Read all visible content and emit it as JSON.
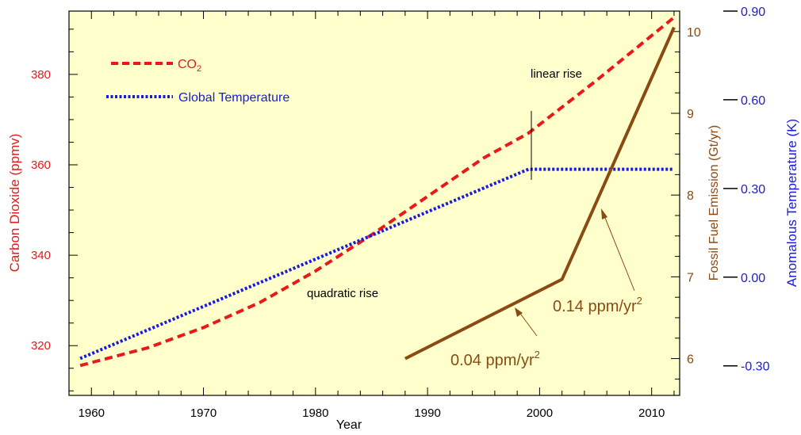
{
  "chart_data": {
    "type": "line",
    "xlabel": "Year",
    "xlim": [
      1958,
      2012.5
    ],
    "xticks": [
      1960,
      1970,
      1980,
      1990,
      2000,
      2010
    ],
    "axes": {
      "co2": {
        "label": "Carbon Dioxide (ppmv)",
        "ylim": [
          309,
          394
        ],
        "ticks": [
          320,
          340,
          360,
          380
        ],
        "color": "#e8191b"
      },
      "fossil": {
        "label": "Fossil Fuel Emission (Gt/yr)",
        "ylim": [
          5.55,
          10.25
        ],
        "ticks": [
          6,
          7,
          8,
          9,
          10
        ],
        "color": "#8b4a12"
      },
      "temperature": {
        "label": "Anomalous Temperature (K)",
        "ylim": [
          -0.4,
          0.9
        ],
        "ticks": [
          -0.3,
          0.0,
          0.3,
          0.6,
          0.9
        ],
        "tick_labels": [
          "-0.30",
          "0.00",
          "0.30",
          "0.60",
          "0.90"
        ],
        "color": "#1a1adc"
      }
    },
    "series": [
      {
        "name": "CO2",
        "axis": "co2",
        "style": "dashed",
        "color": "#e8191b",
        "x": [
          1959,
          1965,
          1970,
          1975,
          1980,
          1985,
          1990,
          1995,
          1999,
          2005,
          2012
        ],
        "y": [
          315.6,
          319.5,
          324.0,
          329.5,
          336.5,
          344.5,
          353.0,
          361.5,
          367.0,
          378.5,
          392.6
        ]
      },
      {
        "name": "Global Temperature",
        "axis": "temperature",
        "style": "dotted",
        "color": "#1a1adc",
        "x": [
          1959,
          1999,
          2012
        ],
        "y": [
          -0.275,
          0.365,
          0.365
        ]
      },
      {
        "name": "Fossil Fuel Emission",
        "axis": "fossil",
        "style": "solid",
        "color": "#8b4a12",
        "x": [
          1988,
          2002,
          2012
        ],
        "y": [
          6.0,
          6.97,
          10.05
        ]
      }
    ],
    "legend": {
      "position": "top-left",
      "entries": [
        {
          "label": "CO",
          "label_sub": "2",
          "series": "CO2"
        },
        {
          "label": "Global Temperature",
          "series": "Global Temperature"
        }
      ]
    },
    "annotations": {
      "linear": "linear rise",
      "quadratic": "quadratic rise",
      "rate_low": "0.04 ppm/yr",
      "rate_high": "0.14 ppm/yr",
      "rate_superscript": "2"
    },
    "grid": false,
    "background_color": "#ffffcc"
  }
}
